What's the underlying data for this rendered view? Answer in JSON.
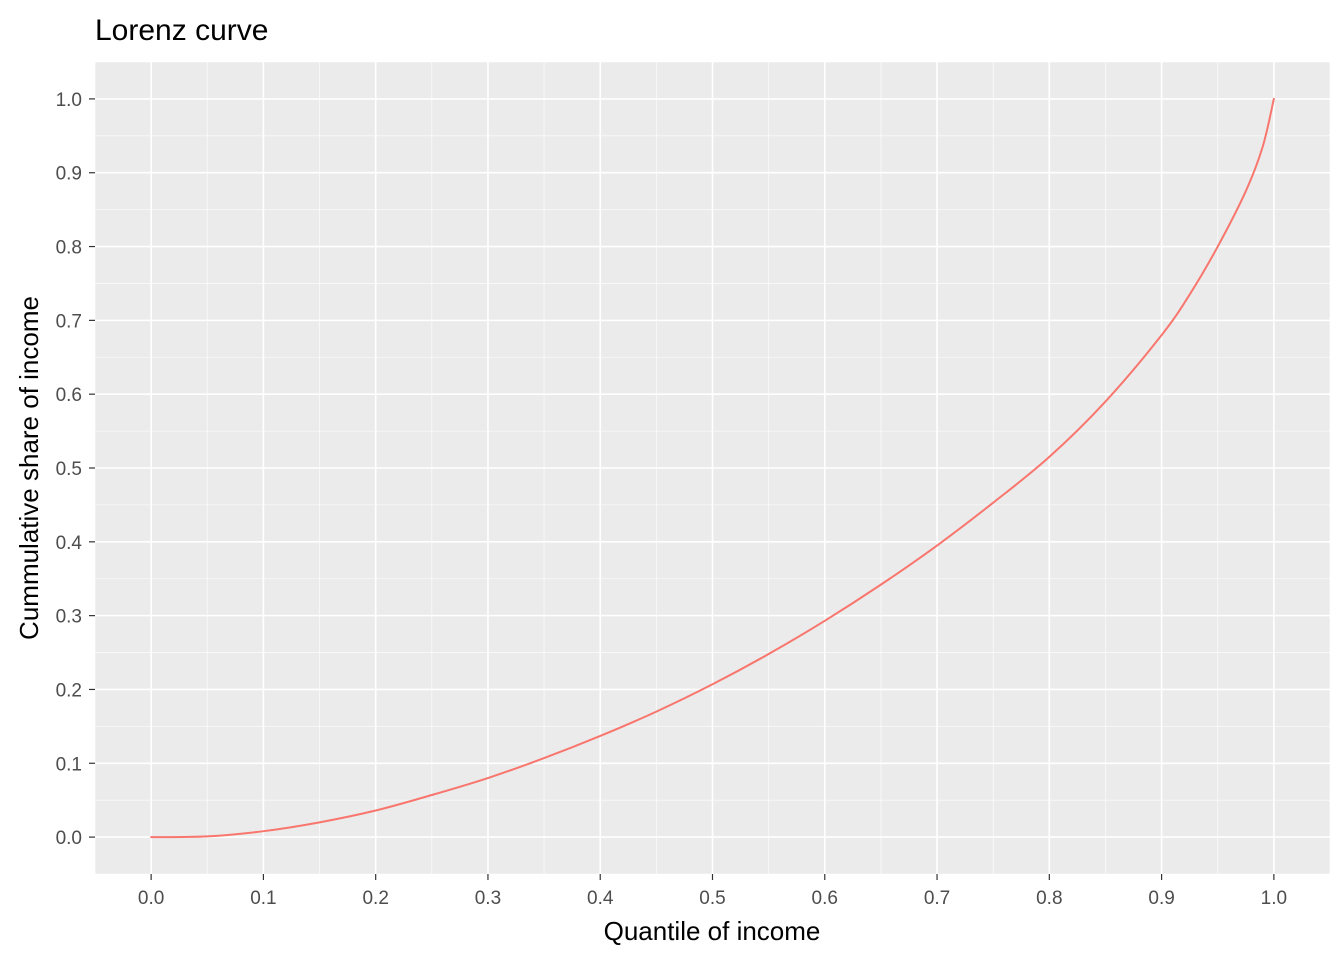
{
  "chart_data": {
    "type": "line",
    "title": "Lorenz curve",
    "xlabel": "Quantile of income",
    "ylabel": "Cummulative share of income",
    "xlim": [
      -0.05,
      1.05
    ],
    "ylim": [
      -0.05,
      1.05
    ],
    "x_ticks": [
      "0.0",
      "0.1",
      "0.2",
      "0.3",
      "0.4",
      "0.5",
      "0.6",
      "0.7",
      "0.8",
      "0.9",
      "1.0"
    ],
    "y_ticks": [
      "0.0",
      "0.1",
      "0.2",
      "0.3",
      "0.4",
      "0.5",
      "0.6",
      "0.7",
      "0.8",
      "0.9",
      "1.0"
    ],
    "grid": true,
    "legend": "none",
    "series": [
      {
        "color": "#F8766D",
        "x": [
          0.0,
          0.05,
          0.1,
          0.15,
          0.2,
          0.25,
          0.3,
          0.35,
          0.4,
          0.45,
          0.5,
          0.55,
          0.6,
          0.65,
          0.7,
          0.75,
          0.8,
          0.85,
          0.9,
          0.925,
          0.95,
          0.975,
          0.99,
          1.0
        ],
        "y": [
          0.0,
          0.001,
          0.008,
          0.02,
          0.036,
          0.057,
          0.08,
          0.107,
          0.137,
          0.17,
          0.207,
          0.248,
          0.293,
          0.342,
          0.395,
          0.453,
          0.515,
          0.59,
          0.68,
          0.735,
          0.8,
          0.875,
          0.935,
          1.0
        ]
      }
    ]
  },
  "colors": {
    "panel_background": "#EBEBEB",
    "grid_major": "#FFFFFF",
    "line": "#F8766D",
    "tick_text": "#4D4D4D"
  }
}
